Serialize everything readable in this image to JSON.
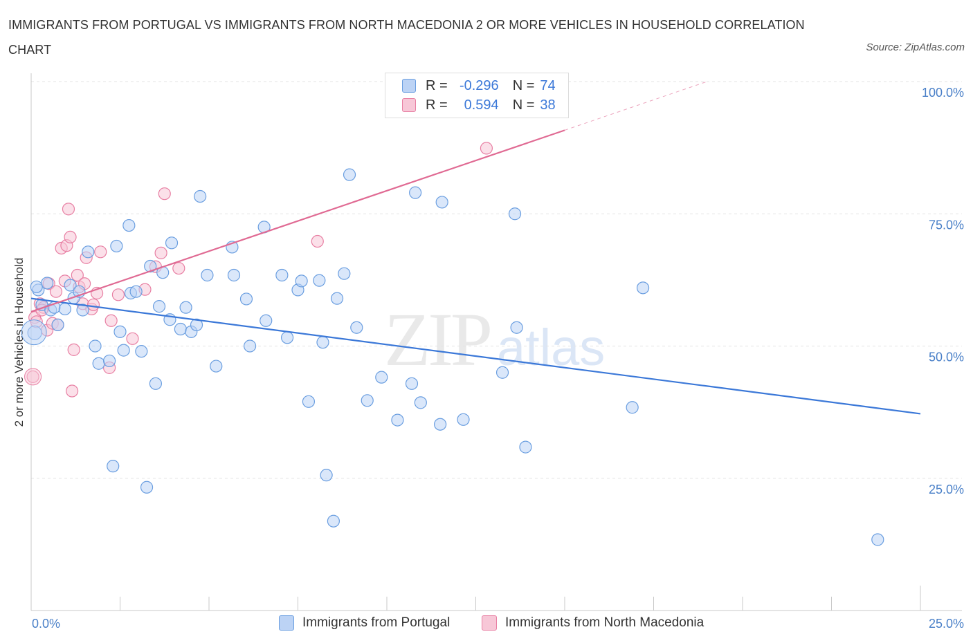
{
  "title": "IMMIGRANTS FROM PORTUGAL VS IMMIGRANTS FROM NORTH MACEDONIA 2 OR MORE VEHICLES IN HOUSEHOLD CORRELATION CHART",
  "source": "Source: ZipAtlas.com",
  "watermark": {
    "zip": "ZIP",
    "atlas": "atlas"
  },
  "legend_top": {
    "r_label": "R =",
    "n_label": "N =",
    "rows": [
      {
        "r_value": "-0.296",
        "n_value": "74"
      },
      {
        "r_value": "0.594",
        "n_value": "38"
      }
    ]
  },
  "chart_data": {
    "type": "scatter",
    "title": "IMMIGRANTS FROM PORTUGAL VS IMMIGRANTS FROM NORTH MACEDONIA 2 OR MORE VEHICLES IN HOUSEHOLD CORRELATION CHART",
    "xlabel": "",
    "ylabel": "2 or more Vehicles in Household",
    "xlim": [
      0,
      25
    ],
    "ylim": [
      0,
      100
    ],
    "x_tick_labels": [
      "0.0%",
      "25.0%"
    ],
    "y_tick_values": [
      25,
      50,
      75,
      100
    ],
    "y_tick_labels": [
      "25.0%",
      "50.0%",
      "75.0%",
      "100.0%"
    ],
    "grid": true,
    "colors": {
      "portugal": "#6a9ee0",
      "portugal_fill": "#bcd3f5",
      "macedonia": "#e87fa3",
      "macedonia_fill": "#f7c7d7",
      "trend_blue": "#3b78d8",
      "trend_pink": "#e06a93"
    },
    "series": [
      {
        "name": "Immigrants from Portugal",
        "r": -0.296,
        "n": 74,
        "trend": {
          "x0": 0,
          "y0": 59.0,
          "x1": 25,
          "y1": 37.2
        },
        "points": [
          [
            0.1,
            52.5
          ],
          [
            0.2,
            60.6
          ],
          [
            0.3,
            57.8
          ],
          [
            0.45,
            61.9
          ],
          [
            0.55,
            56.8
          ],
          [
            0.65,
            57.3
          ],
          [
            0.75,
            54.0
          ],
          [
            0.95,
            57.0
          ],
          [
            1.1,
            61.5
          ],
          [
            1.2,
            59.1
          ],
          [
            1.35,
            60.3
          ],
          [
            1.45,
            56.8
          ],
          [
            1.6,
            67.8
          ],
          [
            1.8,
            50.0
          ],
          [
            1.9,
            46.7
          ],
          [
            2.2,
            47.2
          ],
          [
            2.3,
            27.3
          ],
          [
            2.4,
            68.9
          ],
          [
            2.6,
            49.2
          ],
          [
            2.5,
            52.7
          ],
          [
            2.75,
            72.8
          ],
          [
            2.8,
            60.0
          ],
          [
            2.95,
            60.3
          ],
          [
            3.1,
            49.0
          ],
          [
            3.25,
            23.3
          ],
          [
            3.35,
            65.1
          ],
          [
            3.5,
            42.9
          ],
          [
            3.6,
            57.5
          ],
          [
            3.7,
            63.9
          ],
          [
            3.9,
            55.0
          ],
          [
            3.95,
            69.5
          ],
          [
            4.2,
            53.2
          ],
          [
            4.35,
            57.3
          ],
          [
            4.5,
            52.7
          ],
          [
            4.65,
            54.0
          ],
          [
            4.75,
            78.3
          ],
          [
            4.95,
            63.4
          ],
          [
            5.2,
            46.2
          ],
          [
            5.65,
            68.7
          ],
          [
            5.7,
            63.4
          ],
          [
            6.05,
            58.9
          ],
          [
            6.15,
            50.0
          ],
          [
            6.55,
            72.5
          ],
          [
            6.6,
            54.8
          ],
          [
            7.05,
            63.4
          ],
          [
            7.2,
            51.6
          ],
          [
            7.5,
            60.6
          ],
          [
            7.6,
            62.3
          ],
          [
            7.8,
            39.5
          ],
          [
            8.1,
            62.4
          ],
          [
            8.2,
            50.7
          ],
          [
            8.3,
            25.6
          ],
          [
            8.5,
            16.9
          ],
          [
            8.6,
            59.0
          ],
          [
            8.8,
            63.7
          ],
          [
            8.95,
            82.4
          ],
          [
            9.15,
            53.5
          ],
          [
            9.45,
            39.7
          ],
          [
            9.85,
            44.1
          ],
          [
            10.3,
            36.0
          ],
          [
            10.7,
            42.9
          ],
          [
            10.8,
            79.0
          ],
          [
            10.95,
            39.3
          ],
          [
            11.5,
            35.2
          ],
          [
            11.55,
            77.2
          ],
          [
            12.15,
            36.1
          ],
          [
            13.25,
            45.0
          ],
          [
            13.6,
            75.0
          ],
          [
            13.65,
            53.5
          ],
          [
            13.9,
            30.9
          ],
          [
            16.9,
            38.4
          ],
          [
            17.2,
            61.0
          ],
          [
            23.8,
            13.4
          ],
          [
            0.15,
            61.2
          ]
        ]
      },
      {
        "name": "Immigrants from North Macedonia",
        "r": 0.594,
        "n": 38,
        "trend": {
          "x0": 0,
          "y0": 56.5,
          "x1": 15.0,
          "y1": 90.8,
          "x_dash_end": 19.0,
          "y_dash_end": 100.0
        },
        "points": [
          [
            0.05,
            44.2
          ],
          [
            0.1,
            55.4
          ],
          [
            0.15,
            54.6
          ],
          [
            0.25,
            58.0
          ],
          [
            0.35,
            57.3
          ],
          [
            0.45,
            53.0
          ],
          [
            0.5,
            61.8
          ],
          [
            0.6,
            54.3
          ],
          [
            0.7,
            60.3
          ],
          [
            0.75,
            54.0
          ],
          [
            0.85,
            68.5
          ],
          [
            0.95,
            62.3
          ],
          [
            1.0,
            69.0
          ],
          [
            1.05,
            75.9
          ],
          [
            1.1,
            70.6
          ],
          [
            1.15,
            41.5
          ],
          [
            1.2,
            49.3
          ],
          [
            1.3,
            63.4
          ],
          [
            1.35,
            61.2
          ],
          [
            1.45,
            58.0
          ],
          [
            1.5,
            61.8
          ],
          [
            1.55,
            66.7
          ],
          [
            1.7,
            57.0
          ],
          [
            1.75,
            57.8
          ],
          [
            1.85,
            60.0
          ],
          [
            1.95,
            67.8
          ],
          [
            2.2,
            45.9
          ],
          [
            2.25,
            54.8
          ],
          [
            2.45,
            59.7
          ],
          [
            2.85,
            51.4
          ],
          [
            3.2,
            60.7
          ],
          [
            3.5,
            65.0
          ],
          [
            3.65,
            67.6
          ],
          [
            3.75,
            78.8
          ],
          [
            4.15,
            64.7
          ],
          [
            8.05,
            69.8
          ],
          [
            12.8,
            87.4
          ],
          [
            0.3,
            56.8
          ]
        ]
      }
    ]
  },
  "legend_bottom": {
    "portugal": "Immigrants from Portugal",
    "macedonia": "Immigrants from North Macedonia"
  }
}
